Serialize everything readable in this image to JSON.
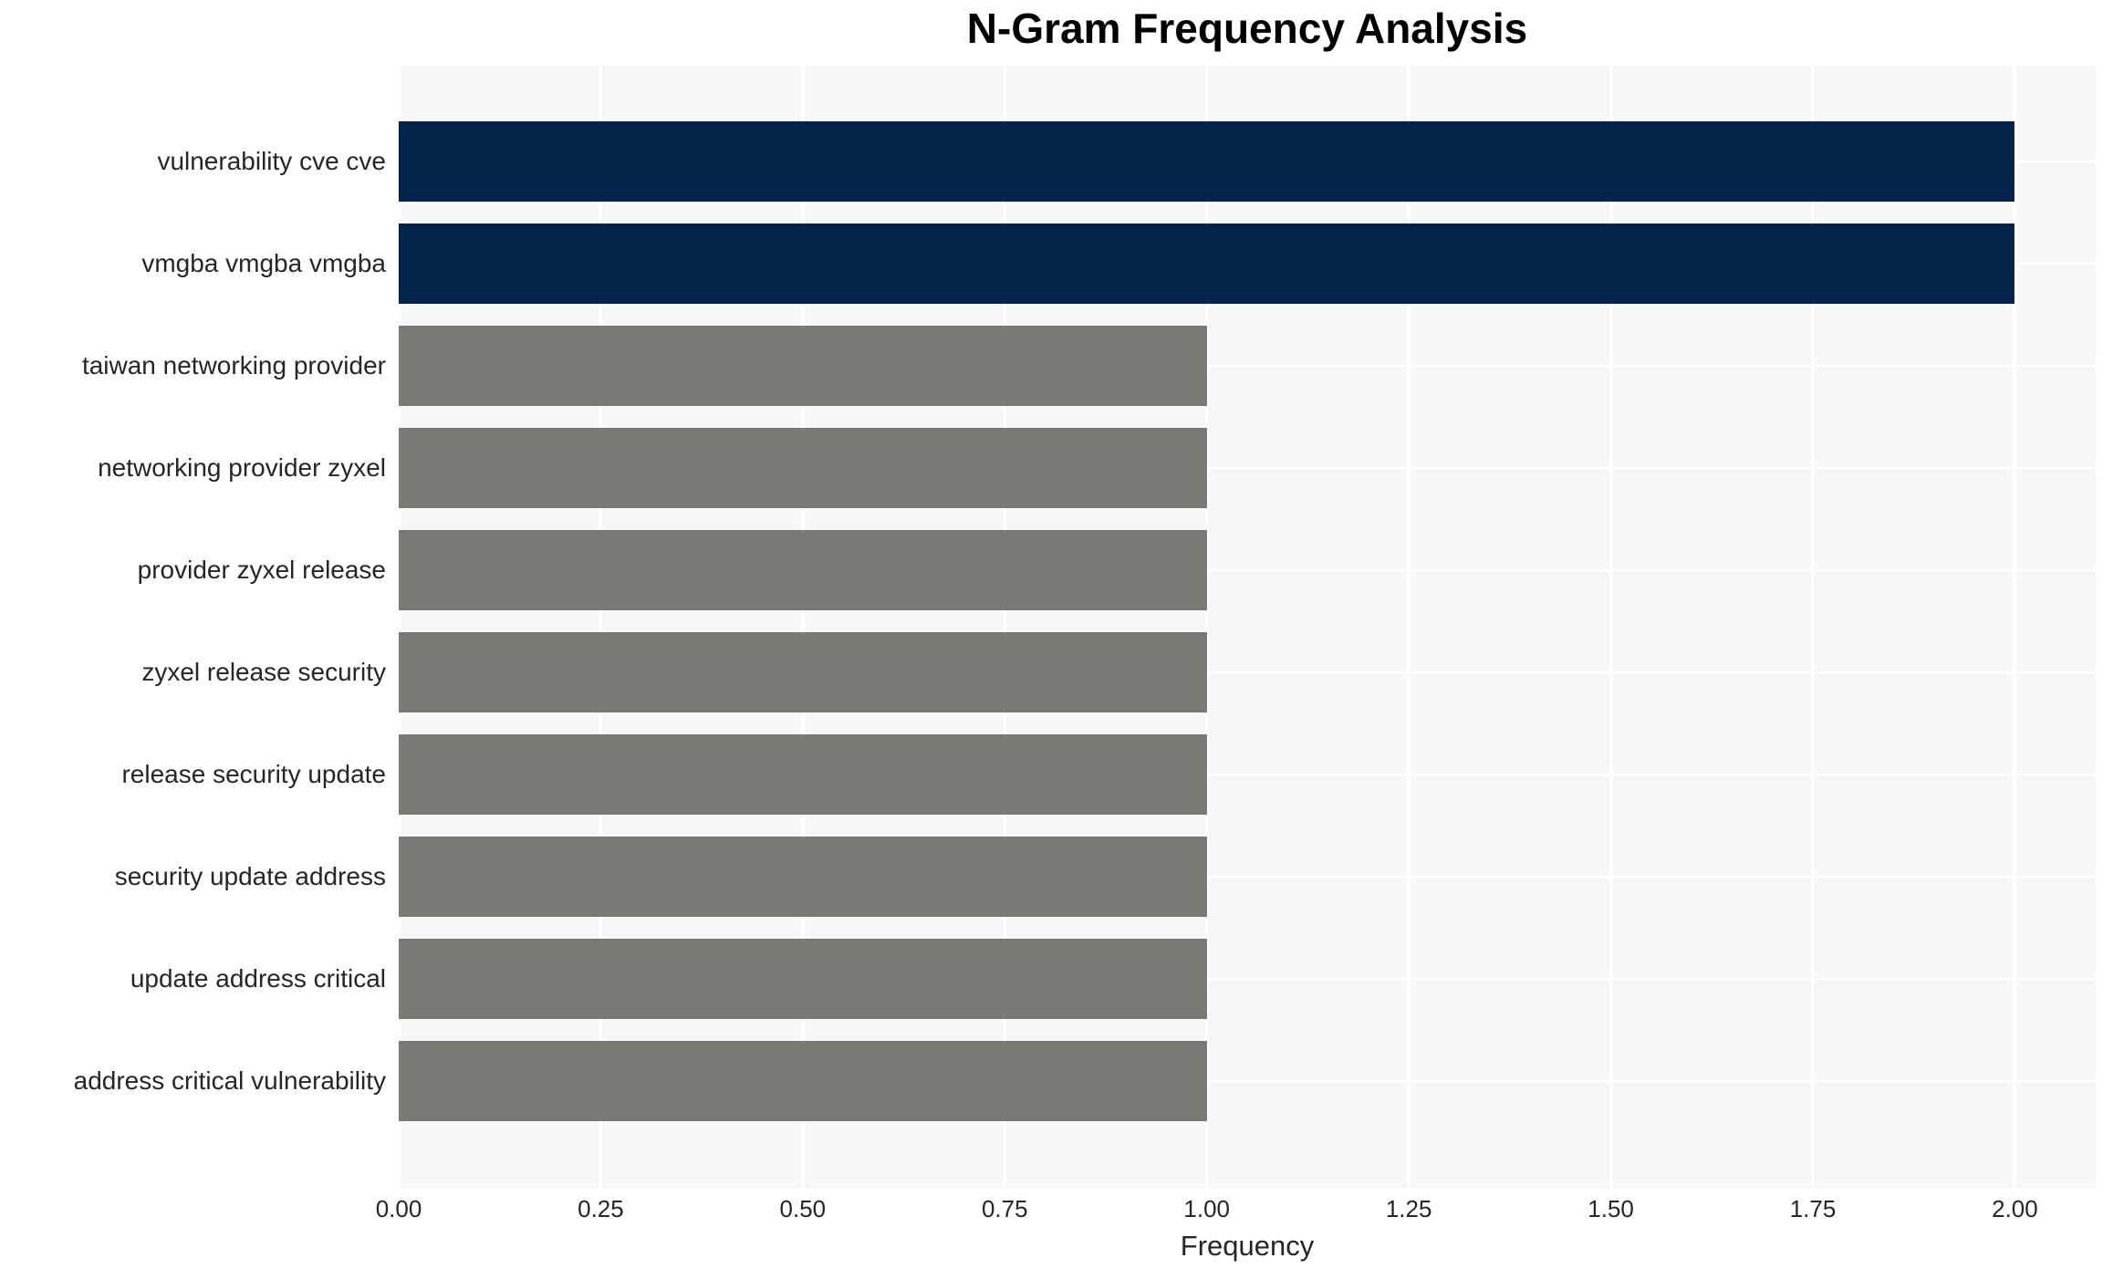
{
  "chart_data": {
    "type": "bar",
    "orientation": "horizontal",
    "title": "N-Gram Frequency Analysis",
    "xlabel": "Frequency",
    "ylabel": "",
    "categories": [
      "vulnerability cve cve",
      "vmgba vmgba vmgba",
      "taiwan networking provider",
      "networking provider zyxel",
      "provider zyxel release",
      "zyxel release security",
      "release security update",
      "security update address",
      "update address critical",
      "address critical vulnerability"
    ],
    "values": [
      2,
      2,
      1,
      1,
      1,
      1,
      1,
      1,
      1,
      1
    ],
    "xlim": [
      0,
      2.1
    ],
    "xticks": [
      0.0,
      0.25,
      0.5,
      0.75,
      1.0,
      1.25,
      1.5,
      1.75,
      2.0
    ],
    "xtick_labels": [
      "0.00",
      "0.25",
      "0.50",
      "0.75",
      "1.00",
      "1.25",
      "1.50",
      "1.75",
      "2.00"
    ],
    "grid": true,
    "legend": false,
    "colors": {
      "bar_highlight": "#02254d",
      "bar_default": "#7b7a77",
      "plot_background": "#f7f7f7",
      "gridline": "#ffffff",
      "text": "#262626",
      "title_text": "#000000"
    },
    "bar_colors": [
      "#02254d",
      "#02254d",
      "#7b7a77",
      "#7b7a77",
      "#7b7a77",
      "#7b7a77",
      "#7b7a77",
      "#7b7a77",
      "#7b7a77",
      "#7b7a77"
    ]
  }
}
